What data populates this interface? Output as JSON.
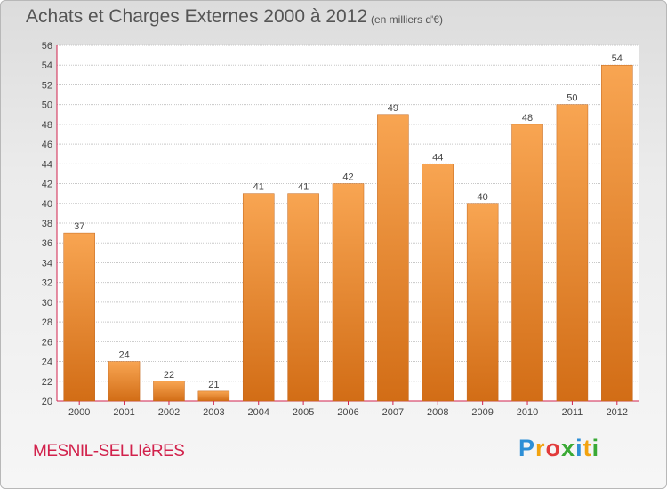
{
  "header": {
    "title": "Achats et Charges Externes 2000 à 2012",
    "subtitle": "(en milliers d'€)"
  },
  "footer": {
    "commune": "MESNIL-SELLIèRES",
    "logo_letters": [
      "P",
      "r",
      "o",
      "x",
      "i",
      "t",
      "i"
    ],
    "logo_colors": [
      "#2e8fd6",
      "#f2a30f",
      "#e23b3b",
      "#3aa935",
      "#2e8fd6",
      "#f2a30f",
      "#3aa935"
    ]
  },
  "colors": {
    "bar_top": "#f8a552",
    "bar_bottom": "#d26d16",
    "axis": "#d2224c",
    "grid": "#c8c8c8",
    "text": "#444444"
  },
  "chart_data": {
    "type": "bar",
    "title": "Achats et Charges Externes 2000 à 2012",
    "subtitle": "(en milliers d'€)",
    "categories": [
      "2000",
      "2001",
      "2002",
      "2003",
      "2004",
      "2005",
      "2006",
      "2007",
      "2008",
      "2009",
      "2010",
      "2011",
      "2012"
    ],
    "values": [
      37,
      24,
      22,
      21,
      41,
      41,
      42,
      49,
      44,
      40,
      48,
      50,
      54
    ],
    "ylim": [
      20,
      56
    ],
    "yticks": [
      20,
      22,
      24,
      26,
      28,
      30,
      32,
      34,
      36,
      38,
      40,
      42,
      44,
      46,
      48,
      50,
      52,
      54,
      56
    ],
    "grid": true,
    "legend": "none"
  }
}
